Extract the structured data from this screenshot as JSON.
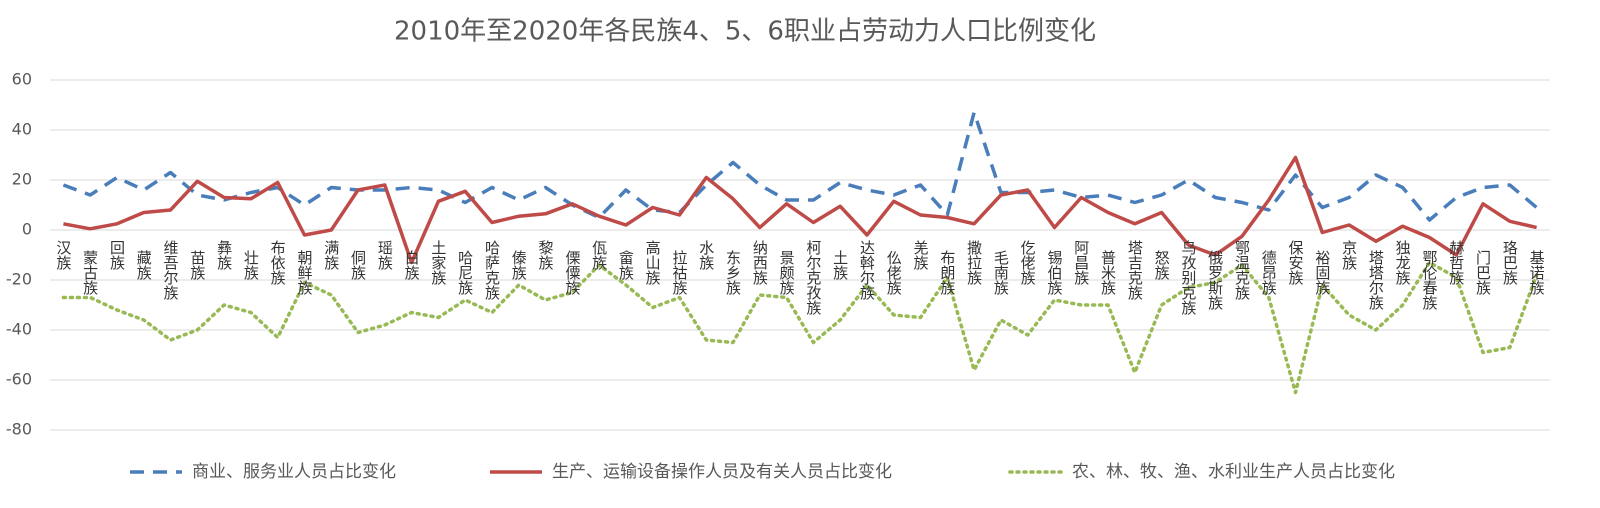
{
  "chart_data": {
    "type": "line",
    "title": "2010年至2020年各民族4、5、6职业占劳动力人口比例变化",
    "categories": [
      "汉族",
      "蒙古族",
      "回族",
      "藏族",
      "维吾尔族",
      "苗族",
      "彝族",
      "壮族",
      "布依族",
      "朝鲜族",
      "满族",
      "侗族",
      "瑶族",
      "白族",
      "土家族",
      "哈尼族",
      "哈萨克族",
      "傣族",
      "黎族",
      "傈僳族",
      "佤族",
      "畲族",
      "高山族",
      "拉祜族",
      "水族",
      "东乡族",
      "纳西族",
      "景颇族",
      "柯尔克孜族",
      "土族",
      "达斡尔族",
      "仫佬族",
      "羌族",
      "布朗族",
      "撒拉族",
      "毛南族",
      "仡佬族",
      "锡伯族",
      "阿昌族",
      "普米族",
      "塔吉克族",
      "怒族",
      "乌孜别克族",
      "俄罗斯族",
      "鄂温克族",
      "德昂族",
      "保安族",
      "裕固族",
      "京族",
      "塔塔尔族",
      "独龙族",
      "鄂伦春族",
      "赫哲族",
      "门巴族",
      "珞巴族",
      "基诺族"
    ],
    "series": [
      {
        "name": "商业、服务业人员占比变化",
        "color": "#4a7ebb",
        "dash": "dashed",
        "values": [
          18,
          14,
          21,
          16,
          23,
          14,
          12,
          15,
          17,
          10,
          17,
          16,
          16,
          17,
          16,
          11,
          17,
          12,
          17,
          10,
          5,
          16,
          8,
          7,
          18,
          27,
          18,
          12,
          12,
          19,
          16,
          14,
          18,
          6,
          47,
          15,
          15,
          16,
          13,
          14,
          11,
          14,
          20,
          13,
          11,
          8,
          22,
          9,
          13,
          22,
          17,
          4,
          13,
          17,
          18,
          9
        ]
      },
      {
        "name": "生产、运输设备操作人员及有关人员占比变化",
        "color": "#be4b48",
        "dash": "solid",
        "values": [
          2.5,
          0.5,
          2.5,
          7,
          8,
          19.5,
          13,
          12.5,
          19,
          -2,
          0,
          16,
          18,
          -13,
          11.5,
          15.5,
          3,
          5.5,
          6.5,
          10.5,
          5.5,
          2,
          9,
          6,
          21,
          12.5,
          1,
          10.5,
          3,
          9.5,
          -2,
          11.5,
          6,
          5,
          2.5,
          14,
          16,
          1,
          13,
          7,
          2.5,
          7,
          -6,
          -10,
          -2.5,
          12,
          29,
          -1,
          2,
          -4.5,
          1.5,
          -3,
          -10,
          10.5,
          3.5,
          1
        ]
      },
      {
        "name": "农、林、牧、渔、水利业生产人员占比变化",
        "color": "#98b954",
        "dash": "dotted",
        "values": [
          -27,
          -27,
          -32,
          -36,
          -44,
          -40,
          -30,
          -33,
          -43,
          -21,
          -26,
          -41,
          -38,
          -33,
          -35,
          -28,
          -33,
          -22,
          -28,
          -25,
          -14,
          -22,
          -31,
          -27,
          -44,
          -45,
          -26,
          -27,
          -45,
          -36,
          -22,
          -34,
          -35,
          -19,
          -56,
          -36,
          -42,
          -28,
          -30,
          -30,
          -57,
          -30,
          -23,
          -21,
          -14,
          -27,
          -65,
          -22,
          -34,
          -40,
          -30,
          -13,
          -19,
          -49,
          -47,
          -18
        ]
      }
    ],
    "ylim": [
      -80,
      60
    ],
    "yticks": [
      -80,
      -60,
      -40,
      -20,
      0,
      20,
      40,
      60
    ],
    "grid": true,
    "legend": "bottom"
  }
}
